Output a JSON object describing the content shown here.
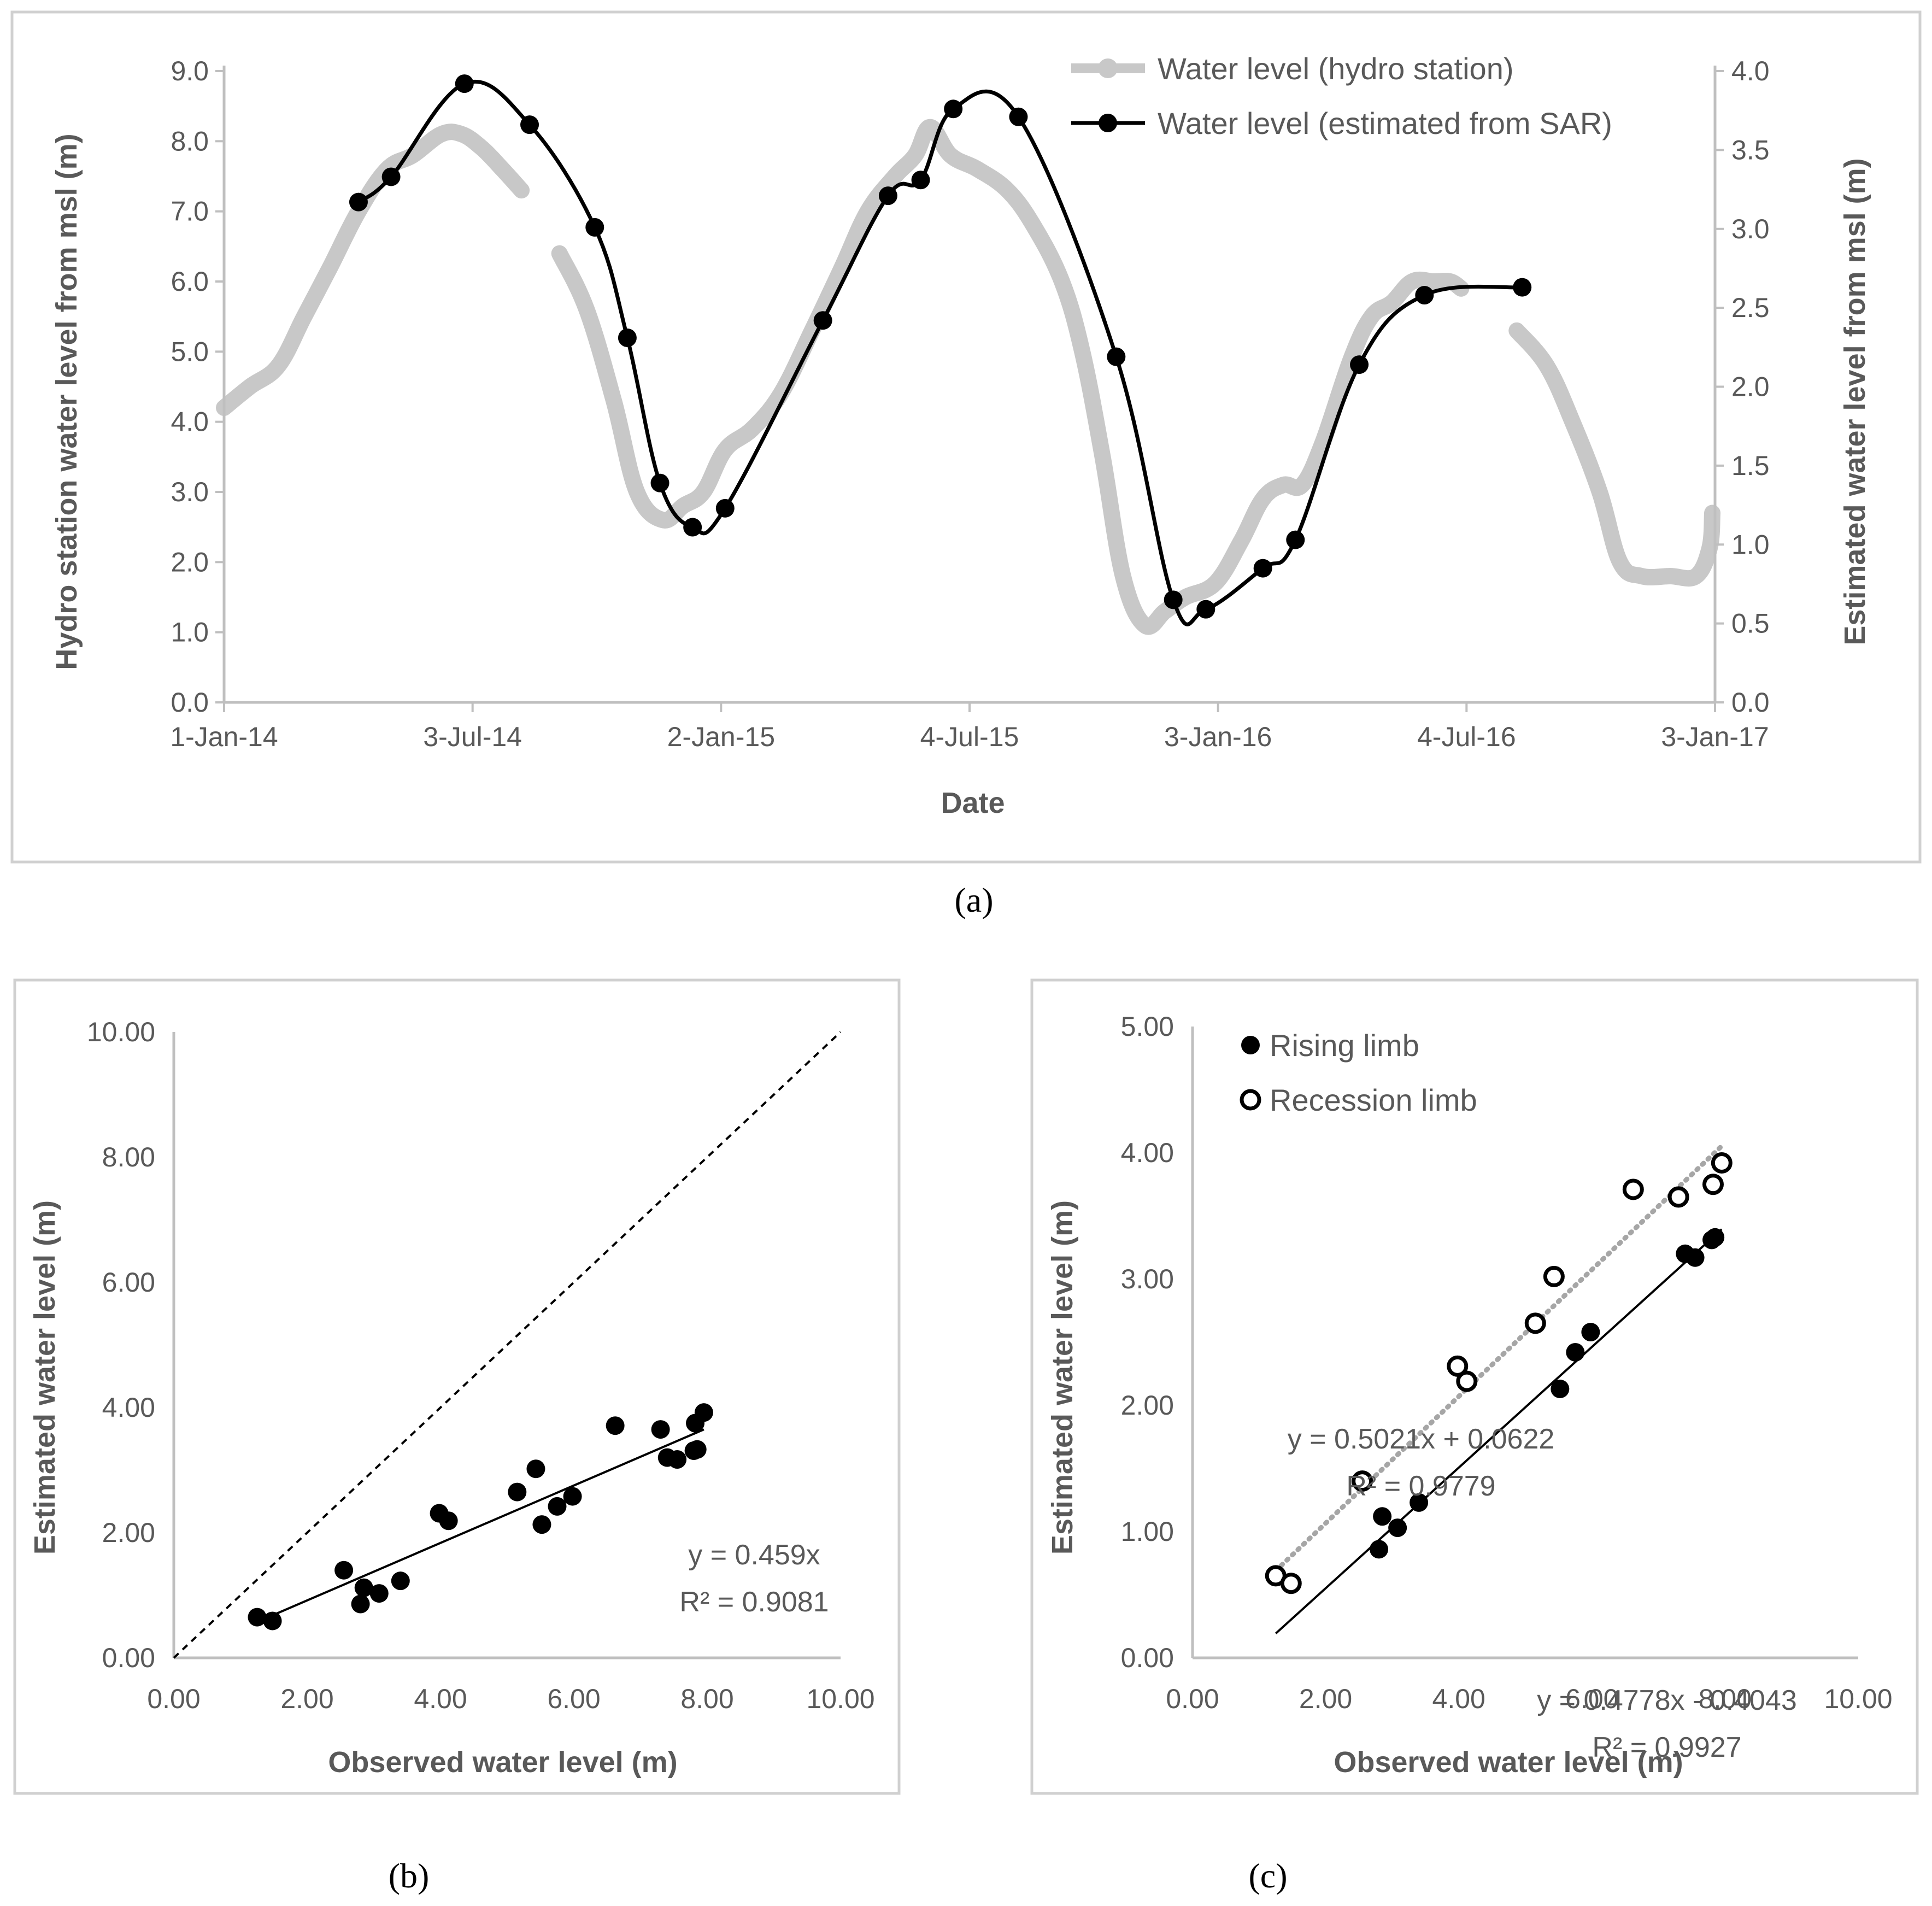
{
  "colors": {
    "hydro": "#c8c8c8",
    "sar": "#000000",
    "axis": "#bfbfbf",
    "text": "#595959",
    "recession_trend": "#a6a6a6"
  },
  "chart_data": [
    {
      "id": "a",
      "type": "line",
      "caption": "(a)",
      "xlabel": "Date",
      "ylabel": "Hydro station water level from msl (m)",
      "y2label": "Estimated water level from msl (m)",
      "xlim": [
        "2014-01-01",
        "2017-01-03"
      ],
      "xticks": [
        "1-Jan-14",
        "3-Jul-14",
        "2-Jan-15",
        "4-Jul-15",
        "3-Jan-16",
        "4-Jul-16",
        "3-Jan-17"
      ],
      "ylim": [
        0,
        9
      ],
      "yticks": [
        "0.0",
        "1.0",
        "2.0",
        "3.0",
        "4.0",
        "5.0",
        "6.0",
        "7.0",
        "8.0",
        "9.0"
      ],
      "y2lim": [
        0,
        4
      ],
      "y2ticks": [
        "0.0",
        "0.5",
        "1.0",
        "1.5",
        "2.0",
        "2.5",
        "3.0",
        "3.5",
        "4.0"
      ],
      "series": [
        {
          "name": "Water level (hydro station)",
          "axis": "left",
          "segments": [
            [
              [
                "2014-01-01",
                4.2
              ],
              [
                "2014-01-20",
                4.5
              ],
              [
                "2014-02-10",
                4.8
              ],
              [
                "2014-03-01",
                5.5
              ],
              [
                "2014-03-20",
                6.2
              ],
              [
                "2014-04-10",
                7.0
              ],
              [
                "2014-05-01",
                7.6
              ],
              [
                "2014-05-20",
                7.8
              ],
              [
                "2014-06-10",
                8.1
              ],
              [
                "2014-06-25",
                8.1
              ],
              [
                "2014-07-10",
                7.9
              ],
              [
                "2014-07-25",
                7.6
              ],
              [
                "2014-08-08",
                7.3
              ]
            ],
            [
              [
                "2014-09-05",
                6.4
              ],
              [
                "2014-09-25",
                5.6
              ],
              [
                "2014-10-15",
                4.3
              ],
              [
                "2014-11-01",
                3.0
              ],
              [
                "2014-11-20",
                2.6
              ],
              [
                "2014-12-05",
                2.8
              ],
              [
                "2014-12-20",
                3.0
              ],
              [
                "2015-01-05",
                3.6
              ],
              [
                "2015-01-25",
                3.9
              ],
              [
                "2015-02-15",
                4.4
              ],
              [
                "2015-03-10",
                5.3
              ],
              [
                "2015-04-01",
                6.2
              ],
              [
                "2015-04-20",
                7.0
              ],
              [
                "2015-05-10",
                7.5
              ],
              [
                "2015-05-25",
                7.8
              ],
              [
                "2015-06-05",
                8.2
              ],
              [
                "2015-06-20",
                7.8
              ],
              [
                "2015-07-10",
                7.6
              ],
              [
                "2015-08-01",
                7.3
              ],
              [
                "2015-08-20",
                6.8
              ],
              [
                "2015-09-10",
                6.0
              ],
              [
                "2015-09-25",
                5.0
              ],
              [
                "2015-10-10",
                3.5
              ],
              [
                "2015-10-25",
                1.8
              ],
              [
                "2015-11-10",
                1.1
              ],
              [
                "2015-11-25",
                1.3
              ],
              [
                "2015-12-10",
                1.5
              ],
              [
                "2016-01-01",
                1.7
              ],
              [
                "2016-01-20",
                2.3
              ],
              [
                "2016-02-05",
                2.9
              ],
              [
                "2016-02-20",
                3.1
              ],
              [
                "2016-03-05",
                3.1
              ],
              [
                "2016-03-20",
                3.7
              ],
              [
                "2016-04-10",
                4.9
              ],
              [
                "2016-04-25",
                5.5
              ],
              [
                "2016-05-10",
                5.7
              ],
              [
                "2016-05-25",
                6.0
              ],
              [
                "2016-06-10",
                6.0
              ],
              [
                "2016-06-22",
                6.0
              ],
              [
                "2016-06-30",
                5.9
              ]
            ],
            [
              [
                "2016-08-10",
                5.3
              ],
              [
                "2016-09-01",
                4.8
              ],
              [
                "2016-09-20",
                4.0
              ],
              [
                "2016-10-10",
                3.0
              ],
              [
                "2016-10-25",
                2.0
              ],
              [
                "2016-11-10",
                1.8
              ],
              [
                "2016-12-01",
                1.8
              ],
              [
                "2016-12-20",
                1.8
              ],
              [
                "2016-12-30",
                2.2
              ],
              [
                "2017-01-01",
                2.7
              ]
            ]
          ]
        },
        {
          "name": "Water level (estimated from SAR)",
          "axis": "right",
          "points": [
            [
              "2014-04-10",
              3.17
            ],
            [
              "2014-05-04",
              3.33
            ],
            [
              "2014-06-27",
              3.92
            ],
            [
              "2014-08-14",
              3.66
            ],
            [
              "2014-10-01",
              3.01
            ],
            [
              "2014-10-25",
              2.31
            ],
            [
              "2014-11-18",
              1.39
            ],
            [
              "2014-12-12",
              1.11
            ],
            [
              "2015-01-05",
              1.23
            ],
            [
              "2015-03-18",
              2.42
            ],
            [
              "2015-05-05",
              3.21
            ],
            [
              "2015-05-29",
              3.31
            ],
            [
              "2015-06-22",
              3.76
            ],
            [
              "2015-08-09",
              3.71
            ],
            [
              "2015-10-20",
              2.19
            ],
            [
              "2015-12-01",
              0.65
            ],
            [
              "2015-12-25",
              0.59
            ],
            [
              "2016-02-05",
              0.85
            ],
            [
              "2016-02-29",
              1.03
            ],
            [
              "2016-04-16",
              2.14
            ],
            [
              "2016-06-03",
              2.58
            ],
            [
              "2016-08-14",
              2.63
            ]
          ]
        }
      ]
    },
    {
      "id": "b",
      "type": "scatter",
      "caption": "(b)",
      "xlabel": "Observed water level (m)",
      "ylabel": "Estimated water level (m)",
      "xlim": [
        0,
        10
      ],
      "ylim": [
        0,
        10
      ],
      "xticks": [
        "0.00",
        "2.00",
        "4.00",
        "6.00",
        "8.00",
        "10.00"
      ],
      "yticks": [
        "0.00",
        "2.00",
        "4.00",
        "6.00",
        "8.00",
        "10.00"
      ],
      "reference_line": "1:1 dashed",
      "trendline": {
        "slope": 0.459,
        "intercept": 0,
        "x_range": [
          1.3,
          7.95
        ],
        "equation": "y = 0.459x",
        "r2": "R² = 0.9081"
      },
      "points": [
        [
          1.25,
          0.65
        ],
        [
          1.48,
          0.59
        ],
        [
          2.55,
          1.4
        ],
        [
          2.8,
          0.86
        ],
        [
          2.85,
          1.12
        ],
        [
          3.08,
          1.03
        ],
        [
          3.4,
          1.23
        ],
        [
          3.98,
          2.31
        ],
        [
          4.12,
          2.19
        ],
        [
          5.15,
          2.65
        ],
        [
          5.43,
          3.02
        ],
        [
          5.52,
          2.13
        ],
        [
          5.75,
          2.42
        ],
        [
          5.98,
          2.58
        ],
        [
          6.62,
          3.71
        ],
        [
          7.3,
          3.65
        ],
        [
          7.4,
          3.2
        ],
        [
          7.55,
          3.17
        ],
        [
          7.8,
          3.31
        ],
        [
          7.85,
          3.33
        ],
        [
          7.82,
          3.75
        ],
        [
          7.95,
          3.92
        ]
      ]
    },
    {
      "id": "c",
      "type": "scatter",
      "caption": "(c)",
      "xlabel": "Observed water level (m)",
      "ylabel": "Estimated water level (m)",
      "xlim": [
        0,
        10
      ],
      "ylim": [
        0,
        5
      ],
      "xticks": [
        "0.00",
        "2.00",
        "4.00",
        "6.00",
        "8.00",
        "10.00"
      ],
      "yticks": [
        "0.00",
        "1.00",
        "2.00",
        "3.00",
        "4.00",
        "5.00"
      ],
      "series": [
        {
          "name": "Rising limb",
          "marker": "filled",
          "trendline": {
            "slope": 0.4778,
            "intercept": -0.4043,
            "x_range": [
              1.25,
              7.95
            ],
            "style": "solid",
            "equation": "y = 0.4778x - 0.4043",
            "r2": "R² = 0.9927"
          },
          "points": [
            [
              2.8,
              0.86
            ],
            [
              2.85,
              1.12
            ],
            [
              3.08,
              1.03
            ],
            [
              3.4,
              1.23
            ],
            [
              5.52,
              2.13
            ],
            [
              5.75,
              2.42
            ],
            [
              5.98,
              2.58
            ],
            [
              7.4,
              3.2
            ],
            [
              7.55,
              3.17
            ],
            [
              7.8,
              3.31
            ],
            [
              7.85,
              3.33
            ]
          ]
        },
        {
          "name": "Recession limb",
          "marker": "open",
          "trendline": {
            "slope": 0.5021,
            "intercept": 0.0622,
            "x_range": [
              1.25,
              7.95
            ],
            "style": "dotted",
            "equation": "y = 0.5021x + 0.0622",
            "r2": "R² = 0.9779"
          },
          "points": [
            [
              1.25,
              0.65
            ],
            [
              1.48,
              0.59
            ],
            [
              2.55,
              1.4
            ],
            [
              3.98,
              2.31
            ],
            [
              4.12,
              2.19
            ],
            [
              5.15,
              2.65
            ],
            [
              5.43,
              3.02
            ],
            [
              6.62,
              3.71
            ],
            [
              7.3,
              3.65
            ],
            [
              7.82,
              3.75
            ],
            [
              7.95,
              3.92
            ]
          ]
        }
      ]
    }
  ]
}
